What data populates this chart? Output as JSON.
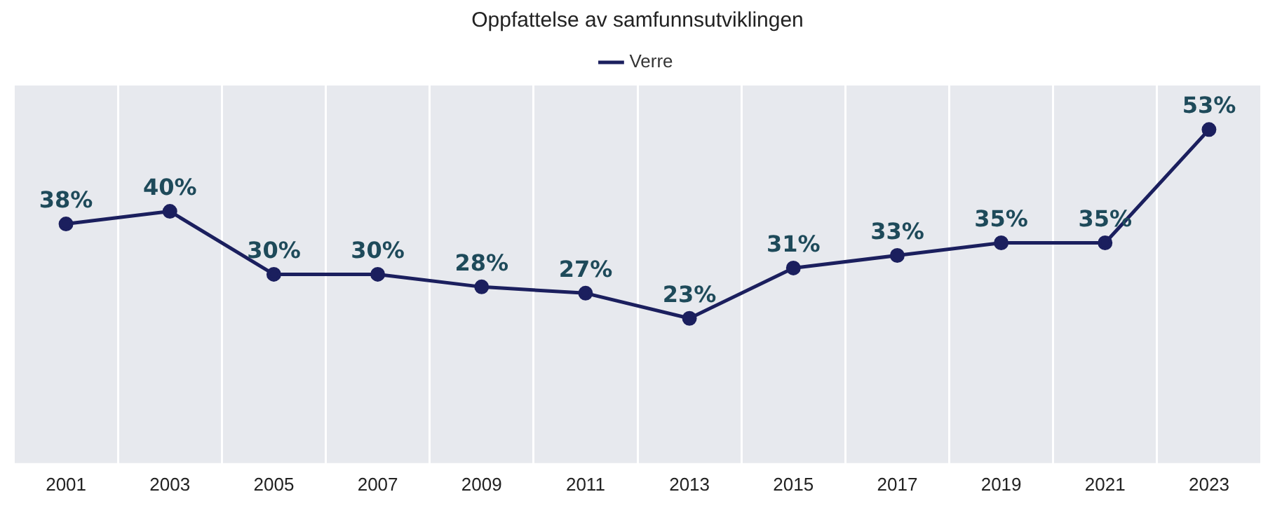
{
  "chart_data": {
    "type": "line",
    "title": "Oppfattelse av samfunnsutviklingen",
    "categories": [
      "2001",
      "2003",
      "2005",
      "2007",
      "2009",
      "2011",
      "2013",
      "2015",
      "2017",
      "2019",
      "2021",
      "2023"
    ],
    "series": [
      {
        "name": "Verre",
        "color": "#1b1f5e",
        "values": [
          38,
          40,
          30,
          30,
          28,
          27,
          23,
          31,
          33,
          35,
          35,
          53
        ],
        "value_labels": [
          "38%",
          "40%",
          "30%",
          "30%",
          "28%",
          "27%",
          "23%",
          "31%",
          "33%",
          "35%",
          "35%",
          "53%"
        ]
      }
    ],
    "ylim": [
      0,
      60
    ],
    "tick_labels": "x",
    "grid": "x",
    "legend": "top",
    "marker": "circle",
    "line_style": "solid"
  }
}
